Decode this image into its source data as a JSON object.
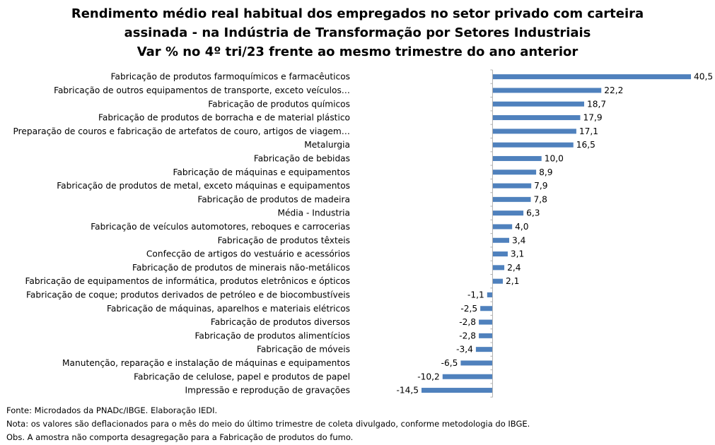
{
  "chart_data": {
    "type": "bar",
    "orientation": "horizontal",
    "title_lines": [
      "Rendimento médio real habitual dos empregados no setor privado com carteira",
      "assinada - na Indústria de Transformação por Setores Industriais",
      "Var % no 4º tri/23 frente ao mesmo trimestre do ano anterior"
    ],
    "categories": [
      "Fabricação de produtos farmoquímicos e farmacêuticos",
      "Fabricação de outros equipamentos de transporte, exceto veículos…",
      "Fabricação de produtos químicos",
      "Fabricação de produtos de borracha e de material plástico",
      "Preparação de couros e fabricação de artefatos de couro, artigos de viagem…",
      "Metalurgia",
      "Fabricação de bebidas",
      "Fabricação de máquinas e equipamentos",
      "Fabricação de produtos de metal, exceto máquinas e equipamentos",
      "Fabricação de produtos de madeira",
      "Média - Industria",
      "Fabricação de veículos automotores, reboques e carrocerias",
      "Fabricação de produtos têxteis",
      "Confecção de artigos do vestuário e acessórios",
      "Fabricação de produtos de minerais não-metálicos",
      "Fabricação de equipamentos de informática, produtos eletrônicos e ópticos",
      "Fabricação de coque; produtos derivados de petróleo e de biocombustíveis",
      "Fabricação de máquinas, aparelhos e materiais elétricos",
      "Fabricação de produtos diversos",
      "Fabricação de produtos alimentícios",
      "Fabricação de móveis",
      "Manutenção, reparação e instalação de máquinas e equipamentos",
      "Fabricação de celulose, papel e produtos de papel",
      "Impressão e reprodução de gravações"
    ],
    "values": [
      40.5,
      22.2,
      18.7,
      17.9,
      17.1,
      16.5,
      10.0,
      8.9,
      7.9,
      7.8,
      6.3,
      4.0,
      3.4,
      3.1,
      2.4,
      2.1,
      -1.1,
      -2.5,
      -2.8,
      -2.8,
      -3.4,
      -6.5,
      -10.2,
      -14.5
    ],
    "value_labels": [
      "40,5",
      "22,2",
      "18,7",
      "17,9",
      "17,1",
      "16,5",
      "10,0",
      "8,9",
      "7,9",
      "7,8",
      "6,3",
      "4,0",
      "3,4",
      "3,1",
      "2,4",
      "2,1",
      "-1,1",
      "-2,5",
      "-2,8",
      "-2,8",
      "-3,4",
      "-6,5",
      "-10,2",
      "-14,5"
    ],
    "xlim": [
      -14.5,
      40.5
    ],
    "bar_color": "#4f81bd",
    "axis_color": "#b0b0b0",
    "grid": false,
    "legend": "none"
  },
  "notes": [
    "Fonte: Microdados da PNADc/IBGE. Elaboração IEDI.",
    "Nota: os valores são deflacionados para o mês do meio do último trimestre de coleta divulgado, conforme metodologia do IBGE.",
    "Obs. A amostra não comporta desagregação para a Fabricação de produtos do fumo."
  ]
}
